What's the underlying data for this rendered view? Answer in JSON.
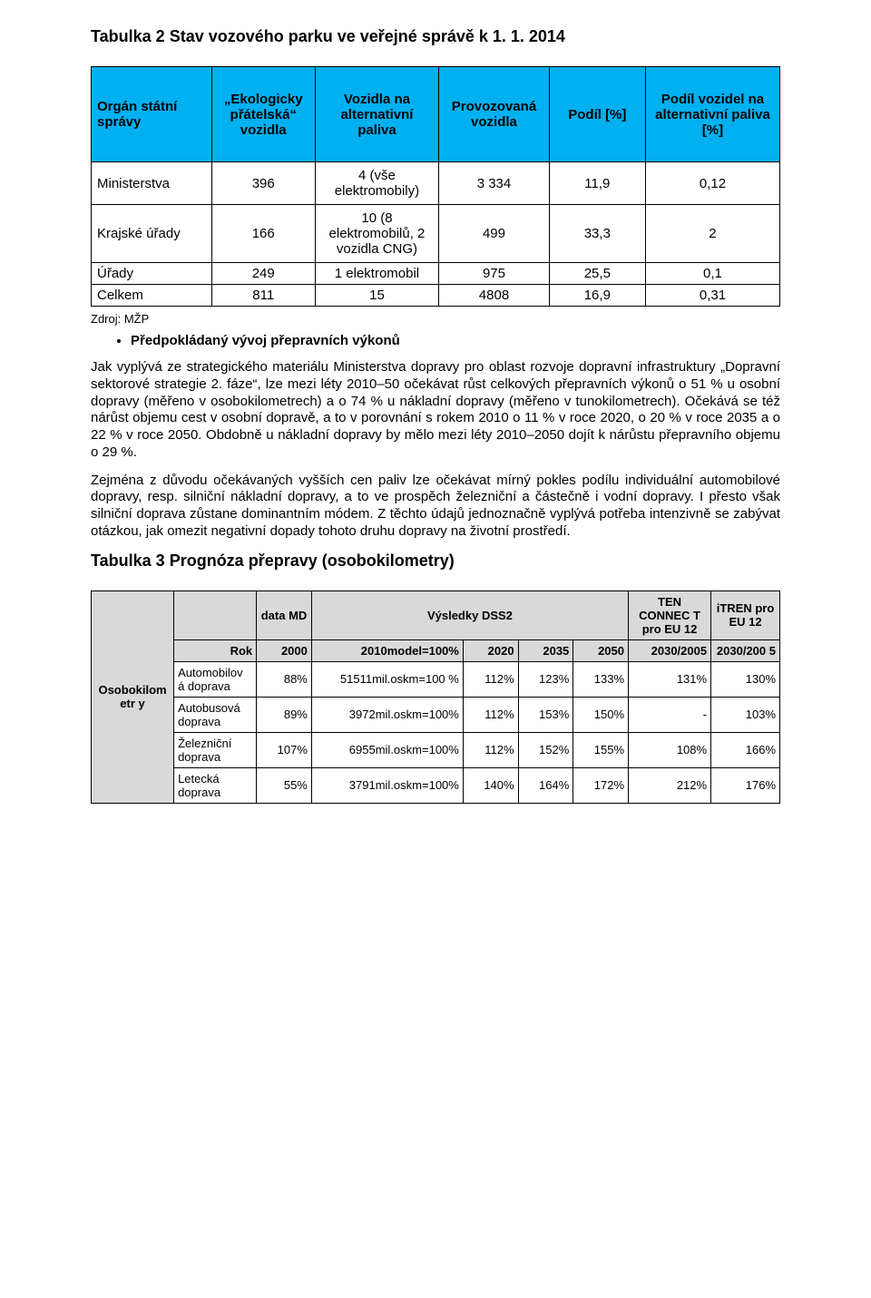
{
  "title1": "Tabulka 2 Stav vozového parku ve veřejné správě k 1. 1. 2014",
  "table1": {
    "background_header": "#00b0f0",
    "headers": [
      "Orgán státní správy",
      "„Ekologicky přátelská“ vozidla",
      "Vozidla na alternativní paliva",
      "Provozovaná vozidla",
      "Podíl [%]",
      "Podíl vozidel na alternativní paliva [%]"
    ],
    "rows": [
      {
        "c1": "Ministerstva",
        "c2": "396",
        "c3": "4 (vše elektromobily)",
        "c4": "3 334",
        "c5": "11,9",
        "c6": "0,12"
      },
      {
        "c1": "Krajské úřady",
        "c2": "166",
        "c3": "10 (8 elektromobilů, 2 vozidla CNG)",
        "c4": "499",
        "c5": "33,3",
        "c6": "2"
      },
      {
        "c1": "Úřady",
        "c2": "249",
        "c3": "1 elektromobil",
        "c4": "975",
        "c5": "25,5",
        "c6": "0,1"
      },
      {
        "c1": "Celkem",
        "c2": "811",
        "c3": "15",
        "c4": "4808",
        "c5": "16,9",
        "c6": "0,31"
      }
    ]
  },
  "source": "Zdroj: MŽP",
  "bullet1": "Předpokládaný vývoj přepravních výkonů",
  "para1": "Jak vyplývá ze strategického materiálu Ministerstva dopravy pro oblast rozvoje dopravní infrastruktury „Dopravní sektorové strategie 2. fáze“, lze mezi léty 2010–50 očekávat růst celkových přepravních výkonů o 51 % u osobní dopravy (měřeno v osobokilometrech) a o 74 % u nákladní dopravy (měřeno v tunokilometrech). Očekává se též nárůst objemu cest v osobní dopravě, a to v porovnání s rokem 2010 o 11 % v roce 2020, o 20 % v roce 2035 a o 22 % v roce 2050. Obdobně u nákladní dopravy by mělo mezi léty 2010–2050 dojít k nárůstu přepravního objemu o 29 %.",
  "para2": "Zejména z důvodu očekávaných vyšších cen paliv lze očekávat mírný pokles podílu individuální automobilové dopravy, resp. silniční nákladní dopravy, a to ve prospěch železniční a částečně i vodní dopravy. I přesto však silniční doprava zůstane dominantním módem. Z těchto údajů jednoznačně vyplývá potřeba intenzivně se zabývat otázkou, jak omezit negativní dopady tohoto druhu dopravy na životní prostředí.",
  "title2": "Tabulka 3 Prognóza přepravy (osobokilometry)",
  "table2": {
    "background_header": "#d9d9d9",
    "top_headers": {
      "dataMD": "data MD",
      "vysledky": "Výsledky DSS2",
      "ten": "TEN CONNEC T pro EU 12",
      "itren": "iTREN pro EU 12"
    },
    "year_row": {
      "label": "Rok",
      "y2000": "2000",
      "y2010": "2010model=100%",
      "y2020": "2020",
      "y2035": "2035",
      "y2050": "2050",
      "ten": "2030/2005",
      "itren": "2030/200 5"
    },
    "left_label": "Osobokilometr y",
    "rows": [
      {
        "name": "Automobilov á doprava",
        "a": "88%",
        "b": "51511mil.oskm=100 %",
        "c": "112%",
        "d": "123%",
        "e": "133%",
        "f": "131%",
        "g": "130%"
      },
      {
        "name": "Autobusová doprava",
        "a": "89%",
        "b": "3972mil.oskm=100%",
        "c": "112%",
        "d": "153%",
        "e": "150%",
        "f": "-",
        "g": "103%"
      },
      {
        "name": "Železniční doprava",
        "a": "107%",
        "b": "6955mil.oskm=100%",
        "c": "112%",
        "d": "152%",
        "e": "155%",
        "f": "108%",
        "g": "166%"
      },
      {
        "name": "Letecká doprava",
        "a": "55%",
        "b": "3791mil.oskm=100%",
        "c": "140%",
        "d": "164%",
        "e": "172%",
        "f": "212%",
        "g": "176%"
      }
    ]
  }
}
